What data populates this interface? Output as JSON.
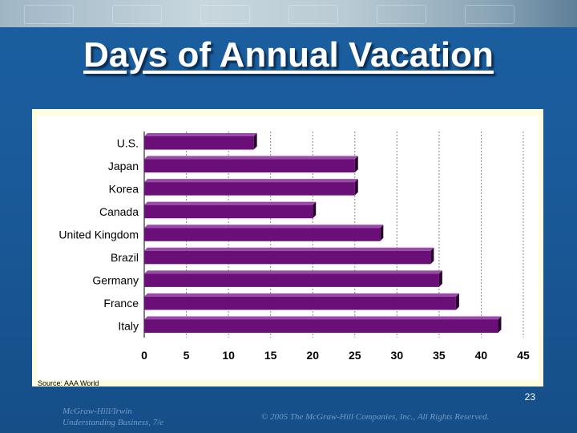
{
  "slide": {
    "title": "Days of Annual Vacation",
    "source": "Source: AAA World",
    "page_number": "23",
    "footer_left_line1": "McGraw-Hill/Irwin",
    "footer_left_line2": "Understanding Business, 7/e",
    "footer_right": "© 2005 The McGraw-Hill Companies, Inc., All Rights Reserved.",
    "colors": {
      "background": "#1a5a9a",
      "chart_panel": "#fffde0",
      "bar": "#6a0f78",
      "bar_shadow": "#2a0530"
    }
  },
  "chart_data": {
    "type": "bar",
    "orientation": "horizontal",
    "categories": [
      "U.S.",
      "Japan",
      "Korea",
      "Canada",
      "United Kingdom",
      "Brazil",
      "Germany",
      "France",
      "Italy"
    ],
    "values": [
      13,
      25,
      25,
      20,
      28,
      34,
      35,
      37,
      42
    ],
    "xlim": [
      0,
      45
    ],
    "xticks": [
      "0",
      "5",
      "10",
      "15",
      "20",
      "25",
      "30",
      "35",
      "40",
      "45"
    ],
    "grid": "vertical dashed",
    "xlabel": "",
    "ylabel": ""
  }
}
